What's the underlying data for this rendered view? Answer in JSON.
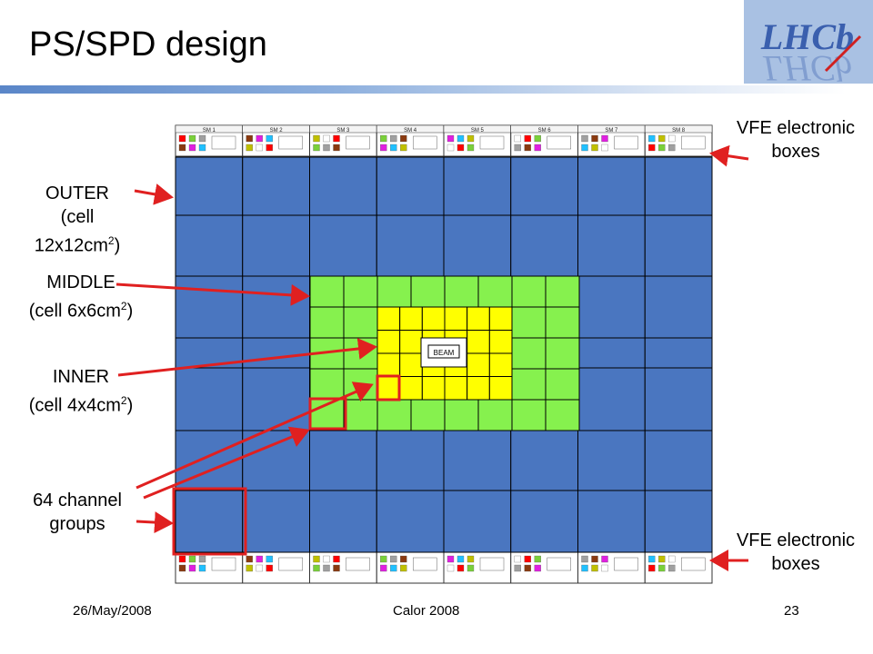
{
  "slide": {
    "title": "PS/SPD design",
    "footer_date": "26/May/2008",
    "footer_event": "Calor 2008",
    "page_number": "23"
  },
  "logo": {
    "text": "LHCb"
  },
  "labels": {
    "outer": {
      "name": "OUTER",
      "cell_prefix": "(cell 12x12cm",
      "sup": "2",
      "suffix": ")"
    },
    "middle": {
      "name": "MIDDLE",
      "cell_prefix": "(cell 6x6cm",
      "sup": "2",
      "suffix": ")"
    },
    "inner": {
      "name": "INNER",
      "cell_prefix": "(cell 4x4cm",
      "sup": "2",
      "suffix": ")"
    },
    "groups": {
      "line1": "64 channel",
      "line2": "groups"
    },
    "vfe_top": {
      "line1": "VFE electronic",
      "line2": "boxes"
    },
    "vfe_bottom": {
      "line1": "VFE electronic",
      "line2": "boxes"
    }
  },
  "detector": {
    "beam_label": "BEAM",
    "supermodules": [
      "SM 1",
      "SM 2",
      "SM 3",
      "SM 4",
      "SM 5",
      "SM 6",
      "SM 7",
      "SM 8"
    ],
    "colors": {
      "outer": "#4a76c0",
      "middle": "#86f14e",
      "inner": "#ffff00",
      "highlight": "#e02020",
      "arrow": "#e02020"
    }
  }
}
